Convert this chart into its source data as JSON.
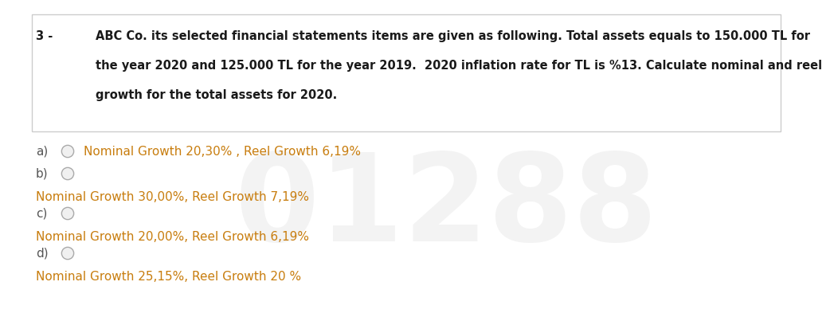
{
  "background_color": "#ffffff",
  "question_number": "3 -",
  "question_text_line1": "ABC Co. its selected financial statements items are given as following. Total assets equals to 150.000 TL for",
  "question_text_line2": "the year 2020 and 125.000 TL for the year 2019.  2020 inflation rate for TL is %13. Calculate nominal and reel",
  "question_text_line3": "growth for the total assets for 2020.",
  "options": [
    {
      "label": "a)",
      "text": "Nominal Growth 20,30% , Reel Growth 6,19%",
      "inline": true
    },
    {
      "label": "b)",
      "text": "Nominal Growth 30,00%, Reel Growth 7,19%",
      "inline": false
    },
    {
      "label": "c)",
      "text": "Nominal Growth 20,00%, Reel Growth 6,19%",
      "inline": false
    },
    {
      "label": "d)",
      "text": "Nominal Growth 25,15%, Reel Growth 20 %",
      "inline": false
    }
  ],
  "question_color": "#1a1a1a",
  "label_color": "#555555",
  "option_text_color": "#c87d0e",
  "circle_edge_color": "#aaaaaa",
  "circle_fill_color": "#f0f0f0",
  "watermark_text": "01288",
  "watermark_color": "#d0d0d0",
  "watermark_alpha": 0.25,
  "box_line_color": "#cccccc",
  "q_fontsize": 10.5,
  "opt_fontsize": 11.0,
  "label_fontsize": 11.0
}
